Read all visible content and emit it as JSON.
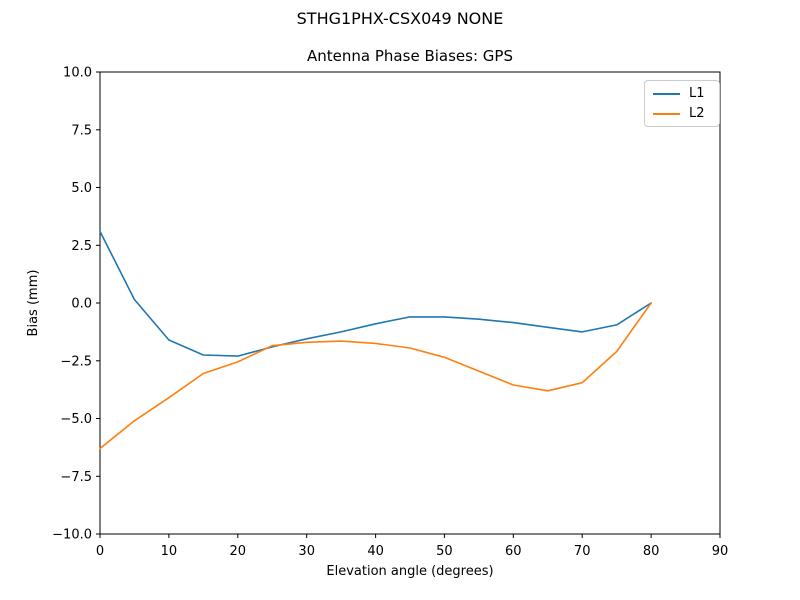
{
  "figure": {
    "suptitle": "STHG1PHX-CSX049 NONE",
    "axes_title": "Antenna Phase Biases: GPS"
  },
  "chart_data": {
    "type": "line",
    "suptitle": "STHG1PHX-CSX049 NONE",
    "title": "Antenna Phase Biases: GPS",
    "xlabel": "Elevation angle (degrees)",
    "ylabel": "Bias (mm)",
    "xlim": [
      0,
      90
    ],
    "ylim": [
      -10,
      10
    ],
    "xticks": [
      0,
      10,
      20,
      30,
      40,
      50,
      60,
      70,
      80,
      90
    ],
    "xtick_labels": [
      "0",
      "10",
      "20",
      "30",
      "40",
      "50",
      "60",
      "70",
      "80",
      "90"
    ],
    "yticks": [
      -10,
      -7.5,
      -5,
      -2.5,
      0,
      2.5,
      5,
      7.5,
      10
    ],
    "ytick_labels": [
      "−10.0",
      "−7.5",
      "−5.0",
      "−2.5",
      "0.0",
      "2.5",
      "5.0",
      "7.5",
      "10.0"
    ],
    "grid": false,
    "legend": {
      "position": "upper right",
      "entries": [
        "L1",
        "L2"
      ]
    },
    "x": [
      0,
      5,
      10,
      15,
      20,
      25,
      30,
      35,
      40,
      45,
      50,
      55,
      60,
      65,
      70,
      75,
      80
    ],
    "series": [
      {
        "name": "L1",
        "color": "#1f77b4",
        "values": [
          3.1,
          0.15,
          -1.6,
          -2.25,
          -2.3,
          -1.9,
          -1.55,
          -1.25,
          -0.9,
          -0.6,
          -0.6,
          -0.7,
          -0.85,
          -1.05,
          -1.25,
          -0.95,
          0.0
        ]
      },
      {
        "name": "L2",
        "color": "#ff7f0e",
        "values": [
          -6.3,
          -5.1,
          -4.1,
          -3.05,
          -2.55,
          -1.85,
          -1.7,
          -1.65,
          -1.75,
          -1.95,
          -2.35,
          -2.95,
          -3.55,
          -3.8,
          -3.45,
          -2.1,
          0.0
        ]
      }
    ],
    "frame_color": "#000000",
    "background_color": "#ffffff"
  }
}
